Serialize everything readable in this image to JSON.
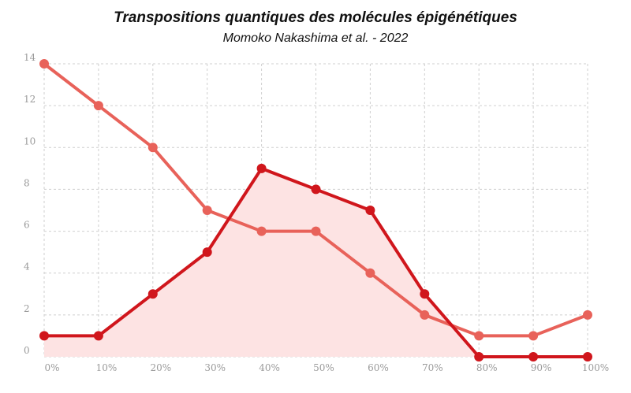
{
  "chart_data": {
    "type": "line",
    "title": "Transpositions quantiques des molécules épigénétiques",
    "subtitle": "Momoko Nakashima et al. - 2022",
    "x": [
      0,
      10,
      20,
      30,
      40,
      50,
      60,
      70,
      80,
      90,
      100
    ],
    "x_tick_labels": [
      "0%",
      "10%",
      "20%",
      "30%",
      "40%",
      "50%",
      "60%",
      "70%",
      "80%",
      "90%",
      "100%"
    ],
    "y_ticks": [
      0,
      2,
      4,
      6,
      8,
      10,
      12,
      14
    ],
    "xlim": [
      0,
      100
    ],
    "ylim": [
      0,
      14
    ],
    "grid": true,
    "series": [
      {
        "values": [
          14,
          12,
          10,
          7,
          6,
          6,
          4,
          2,
          1,
          1,
          2
        ],
        "color": "#e8625a",
        "fill": false
      },
      {
        "values": [
          1,
          1,
          3,
          5,
          9,
          8,
          7,
          3,
          0,
          0,
          0
        ],
        "color": "#d0161c",
        "fill": true,
        "fill_color": "#fde3e3"
      }
    ]
  }
}
